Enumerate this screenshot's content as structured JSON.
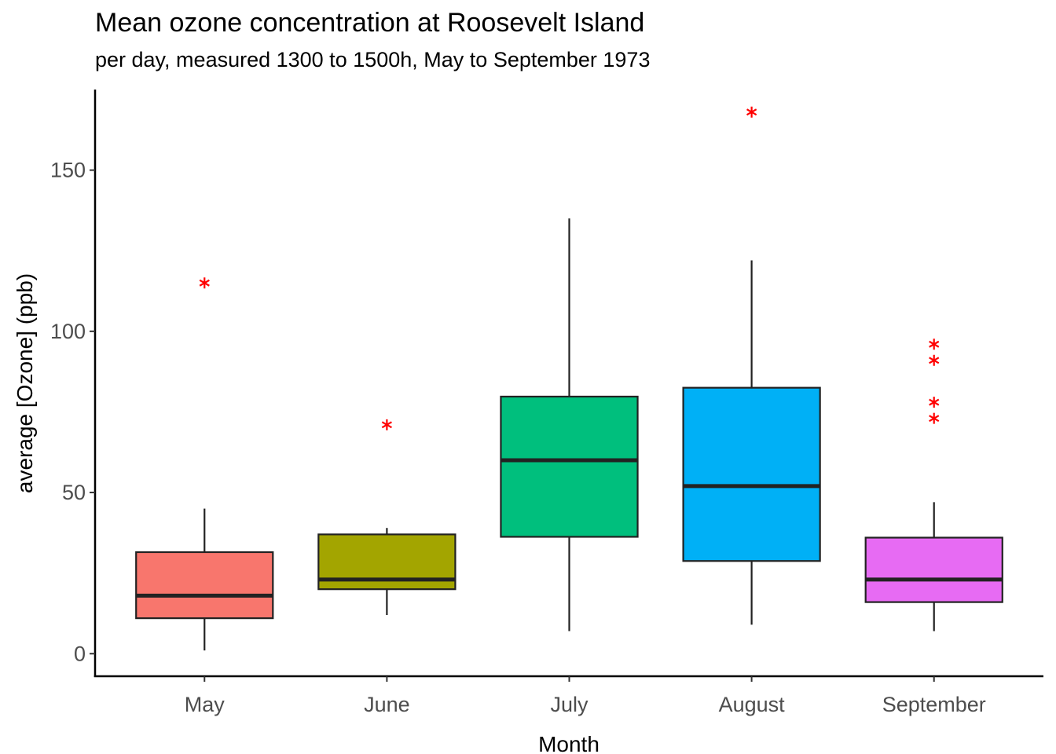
{
  "chart_data": {
    "type": "box",
    "title": "Mean ozone concentration at Roosevelt Island",
    "subtitle": "per day, measured 1300 to 1500h, May to September 1973",
    "xlabel": "Month",
    "ylabel": "average [Ozone] (ppb)",
    "ylim": [
      -7,
      175
    ],
    "yticks": [
      0,
      50,
      100,
      150
    ],
    "grid": false,
    "legend": "none",
    "categories": [
      "May",
      "June",
      "July",
      "August",
      "September"
    ],
    "boxes": [
      {
        "category": "May",
        "fill": "#F8766D",
        "whisker_low": 1,
        "q1": 11,
        "median": 18,
        "q3": 31.5,
        "whisker_high": 45,
        "outliers": [
          115
        ]
      },
      {
        "category": "June",
        "fill": "#A3A500",
        "whisker_low": 12,
        "q1": 20,
        "median": 23,
        "q3": 37,
        "whisker_high": 39,
        "outliers": [
          71
        ]
      },
      {
        "category": "July",
        "fill": "#00BF7D",
        "whisker_low": 7,
        "q1": 36.25,
        "median": 60,
        "q3": 79.75,
        "whisker_high": 135,
        "outliers": []
      },
      {
        "category": "August",
        "fill": "#00B0F6",
        "whisker_low": 9,
        "q1": 28.75,
        "median": 52,
        "q3": 82.5,
        "whisker_high": 122,
        "outliers": [
          168
        ]
      },
      {
        "category": "September",
        "fill": "#E76BF3",
        "whisker_low": 7,
        "q1": 16,
        "median": 23,
        "q3": 36,
        "whisker_high": 47,
        "outliers": [
          73,
          78,
          91,
          96
        ]
      }
    ],
    "outlier_color": "#FF0000",
    "outlier_shape": "asterisk"
  }
}
